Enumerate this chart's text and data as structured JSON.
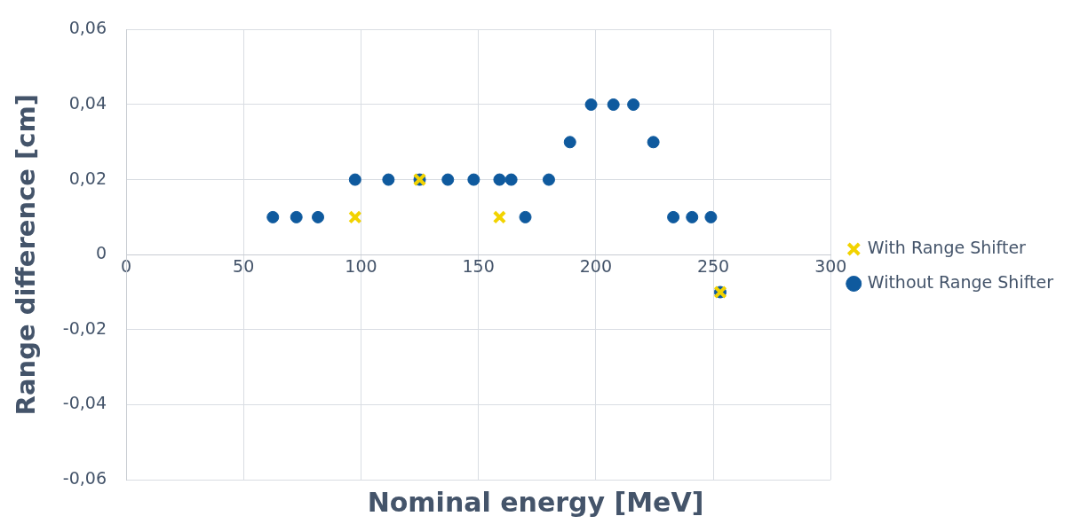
{
  "chart_data": {
    "type": "scatter",
    "xlabel": "Nominal energy [MeV]",
    "ylabel": "Range difference [cm]",
    "xlim": [
      0,
      300
    ],
    "xticks": [
      0,
      50,
      100,
      150,
      200,
      250,
      300
    ],
    "ylim": [
      -0.06,
      0.06
    ],
    "yticks": [
      {
        "value": -0.06,
        "label": "-0,06"
      },
      {
        "value": -0.04,
        "label": "-0,04"
      },
      {
        "value": -0.02,
        "label": "-0,02"
      },
      {
        "value": 0,
        "label": "0"
      },
      {
        "value": 0.02,
        "label": "0,02"
      },
      {
        "value": 0.04,
        "label": "0,04"
      },
      {
        "value": 0.06,
        "label": "0,06"
      }
    ],
    "grid": true,
    "legend": "right",
    "series": [
      {
        "name": "Without Range Shifter",
        "color": "#0f5a9e",
        "marker": "circle",
        "x": [
          62.5,
          72.5,
          81.7,
          97.5,
          111.7,
          125,
          137,
          148,
          159,
          164,
          170,
          180,
          189,
          198,
          207.5,
          216,
          224.5,
          233,
          241,
          249,
          253
        ],
        "values": [
          0.01,
          0.01,
          0.01,
          0.02,
          0.02,
          0.02,
          0.02,
          0.02,
          0.02,
          0.02,
          0.01,
          0.02,
          0.03,
          0.04,
          0.04,
          0.04,
          0.03,
          0.01,
          0.01,
          0.01,
          -0.01
        ]
      },
      {
        "name": "With Range Shifter",
        "color": "#f2d300",
        "marker": "cross",
        "x": [
          97.5,
          125,
          159,
          253
        ],
        "values": [
          0.01,
          0.02,
          0.01,
          -0.01
        ]
      }
    ]
  }
}
